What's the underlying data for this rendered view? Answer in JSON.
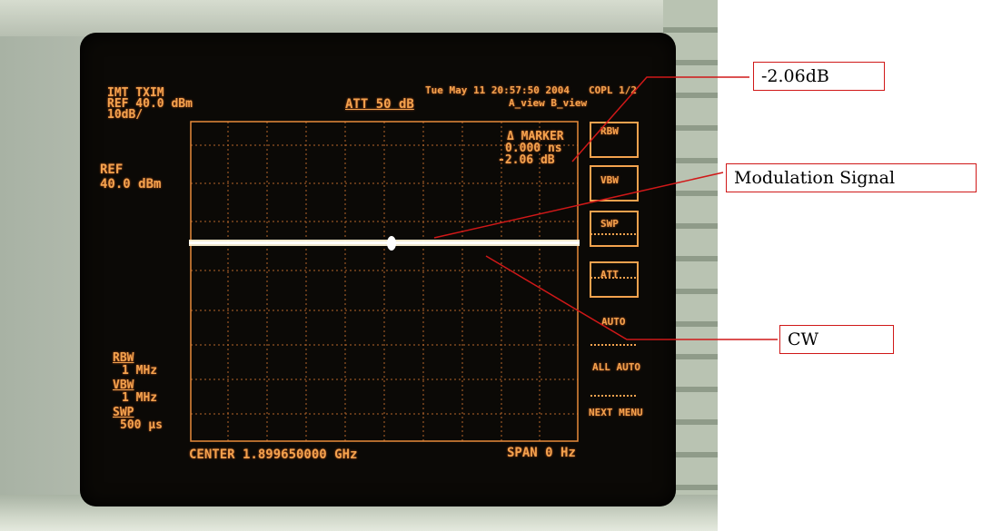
{
  "analyzer": {
    "mode": "IMT TXIM",
    "ref_level": "REF 40.0  dBm",
    "scale": "10dB/",
    "attenuation": "ATT 50 dB",
    "datetime": "Tue May 11 20:57:50 2004",
    "page": "COPL 1/2",
    "views": "A_view B_view",
    "ref_label": "REF",
    "ref_value": "40.0  dBm",
    "marker_title": "Δ MARKER",
    "marker_time": "0.000 ns",
    "marker_level": "-2.06 dB",
    "rbw_label": "RBW",
    "rbw_value": "1 MHz",
    "vbw_label": "VBW",
    "vbw_value": "1 MHz",
    "swp_label": "SWP",
    "swp_value": "500 μs",
    "center": "CENTER 1.899650000 GHz",
    "span": "SPAN 0 Hz"
  },
  "softkeys": [
    "RBW",
    "VBW",
    "SWP",
    "ATT",
    "AUTO",
    "ALL AUTO",
    "NEXT MENU"
  ],
  "callouts": {
    "marker_delta": "-2.06dB",
    "modulation": "Modulation Signal",
    "cw": "CW"
  },
  "colors": {
    "screen_text": "#f3a24e",
    "trace": "#fff6d8",
    "callout_line": "#d01818"
  }
}
